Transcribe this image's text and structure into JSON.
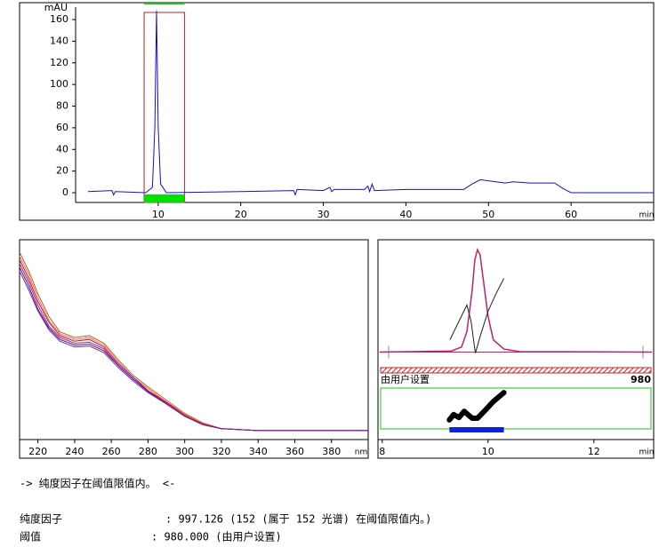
{
  "chart_data": [
    {
      "type": "chromatogram",
      "y_label": "mAU",
      "x_label": "min",
      "color": "#1010d0",
      "x": [
        1.5,
        4.4,
        4.6,
        4.8,
        8.5,
        9.3,
        9.6,
        9.8,
        10.0,
        10.3,
        11,
        20,
        26.4,
        26.6,
        26.8,
        30,
        30.8,
        31,
        31.3,
        35,
        35.4,
        35.6,
        35.9,
        36.2,
        40,
        47,
        48,
        49,
        50,
        52,
        53,
        55,
        58,
        59,
        60,
        70
      ],
      "values": [
        1,
        2,
        -2,
        1,
        0,
        5,
        60,
        168,
        60,
        8,
        0,
        1,
        2,
        -2,
        3,
        2,
        5,
        1,
        3,
        3,
        6,
        1,
        8,
        2,
        3,
        3,
        8,
        12,
        11,
        9,
        10,
        9,
        9,
        4,
        0,
        0
      ],
      "xlim": [
        0,
        70
      ],
      "ylim": [
        -9,
        171.5
      ],
      "xticks": [
        10,
        20,
        30,
        40,
        50,
        60
      ],
      "yticks": [
        0,
        20,
        40,
        60,
        80,
        100,
        120,
        140,
        160
      ],
      "highlight": [
        8.3,
        13.2
      ]
    },
    {
      "type": "spectra",
      "x_label": "nm",
      "x": [
        210,
        215,
        220,
        226,
        232,
        240,
        248,
        256,
        264,
        272,
        280,
        290,
        300,
        310,
        320,
        340,
        400
      ],
      "series": [
        {
          "color": "#b06030",
          "values": [
            94,
            84,
            72,
            60,
            52,
            49,
            50,
            46,
            37,
            29,
            23,
            16,
            9,
            4,
            1,
            0,
            0
          ]
        },
        {
          "color": "#e08020",
          "values": [
            92,
            82,
            70,
            58,
            51,
            48,
            49,
            45,
            36,
            28,
            22,
            15,
            8.5,
            4,
            1,
            0,
            0
          ]
        },
        {
          "color": "#c00080",
          "values": [
            90,
            80,
            68,
            57,
            50,
            47,
            48,
            44,
            35,
            28,
            21,
            15,
            8,
            3.5,
            1,
            0,
            0
          ]
        },
        {
          "color": "#d02020",
          "values": [
            88,
            78,
            66,
            55,
            49,
            46,
            46.5,
            43,
            34,
            27,
            21,
            14.5,
            8,
            3.5,
            1,
            0,
            0
          ]
        },
        {
          "color": "#2020c0",
          "values": [
            86,
            76,
            64,
            54,
            48,
            45,
            45.5,
            42,
            34,
            27,
            20.5,
            14,
            7.5,
            3,
            1,
            0,
            0
          ]
        },
        {
          "color": "#8020a0",
          "values": [
            84,
            74,
            63,
            53,
            47,
            44,
            44.5,
            41,
            33,
            26,
            20,
            14,
            7.5,
            3,
            1,
            0,
            0
          ]
        }
      ],
      "xlim": [
        210,
        400
      ],
      "ylim": [
        -1,
        100
      ],
      "xticks": [
        220,
        240,
        260,
        280,
        300,
        320,
        340,
        360,
        380
      ]
    },
    {
      "type": "purity",
      "x_label": "min",
      "xlim": [
        7.92,
        13.13
      ],
      "xticks": [
        8,
        10,
        12
      ],
      "ylim": [
        -3,
        101
      ],
      "signal": {
        "color": "#c0206a",
        "x": [
          7.95,
          9.3,
          9.5,
          9.6,
          9.7,
          9.75,
          9.8,
          9.85,
          9.9,
          10.0,
          10.1,
          10.3,
          10.6,
          13.1
        ],
        "values": [
          0,
          1,
          5,
          20,
          60,
          90,
          100,
          95,
          75,
          35,
          12,
          3,
          0.5,
          0
        ]
      },
      "similarity": {
        "color": "#202020",
        "x": [
          9.28,
          9.45,
          9.6,
          9.68,
          9.76,
          9.85,
          10.0,
          10.15,
          10.3
        ],
        "values": [
          12,
          30,
          46,
          30,
          -1,
          15,
          40,
          57,
          72
        ]
      },
      "threshold_label": "由用户设置",
      "threshold": 980,
      "purity": {
        "x": [
          9.27,
          9.35,
          9.45,
          9.55,
          9.7,
          9.8,
          9.95,
          10.1,
          10.3
        ],
        "values": [
          22,
          35,
          28,
          43,
          26,
          26,
          46,
          67,
          89
        ]
      },
      "purity_ylim": [
        0,
        100
      ],
      "purity_range": [
        9.27,
        10.3
      ]
    }
  ],
  "report": {
    "message": "-> 纯度因子在阈值限值内。 <-",
    "rows": [
      [
        "纯度因子",
        ": 997.126 (152 (属于 152 光谱) 在阈值限值内。)"
      ],
      [
        "阈值",
        ": 980.000  (由用户设置)"
      ]
    ]
  }
}
